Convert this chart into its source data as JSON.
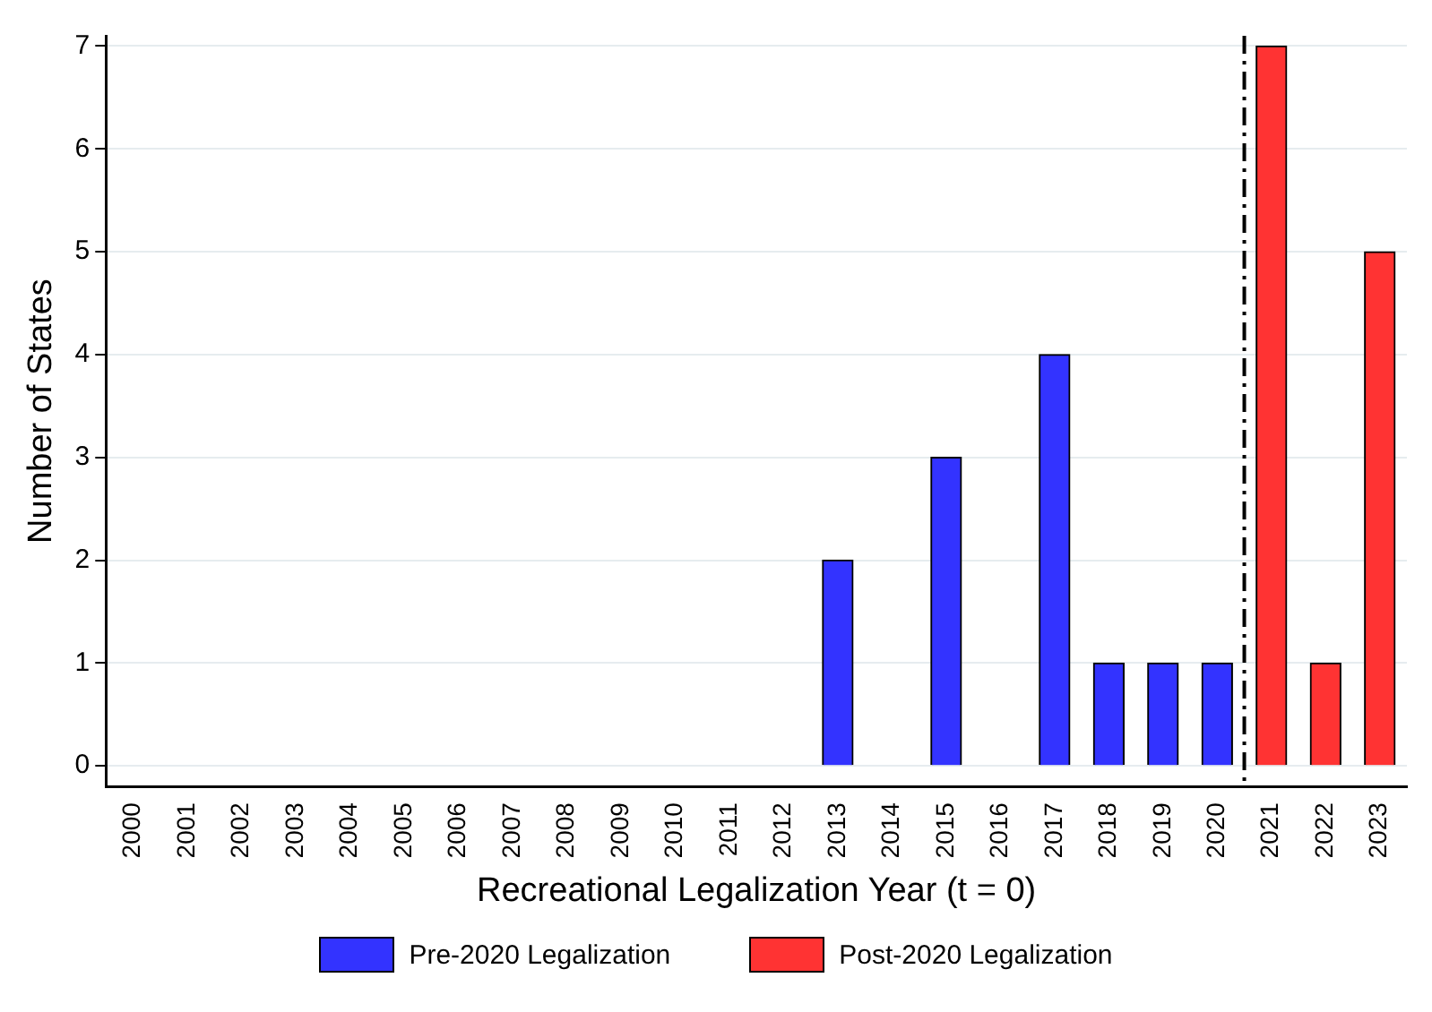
{
  "chart_data": {
    "type": "bar",
    "xlabel": "Recreational Legalization Year (t = 0)",
    "ylabel": "Number of States",
    "xlim": [
      1999.5,
      2023.5
    ],
    "xticks": [
      2000,
      2001,
      2002,
      2003,
      2004,
      2005,
      2006,
      2007,
      2008,
      2009,
      2010,
      2011,
      2012,
      2013,
      2014,
      2015,
      2016,
      2017,
      2018,
      2019,
      2020,
      2021,
      2022,
      2023
    ],
    "ylim": [
      -0.2,
      7.1
    ],
    "yticks": [
      0,
      1,
      2,
      3,
      4,
      5,
      6,
      7
    ],
    "series": [
      {
        "name": "Pre-2020 Legalization",
        "color": "#3333ff",
        "x": [
          2013,
          2015,
          2017,
          2018,
          2019,
          2020
        ],
        "values": [
          2,
          3,
          4,
          1,
          1,
          1
        ]
      },
      {
        "name": "Post-2020 Legalization",
        "color": "#ff3333",
        "x": [
          2021,
          2022,
          2023
        ],
        "values": [
          7,
          1,
          5
        ]
      }
    ],
    "ref_lines": [
      {
        "axis": "x",
        "value": 2020.5,
        "color": "#000000",
        "line_style": "dashed"
      }
    ],
    "grid": "y",
    "legend": "bottom"
  }
}
